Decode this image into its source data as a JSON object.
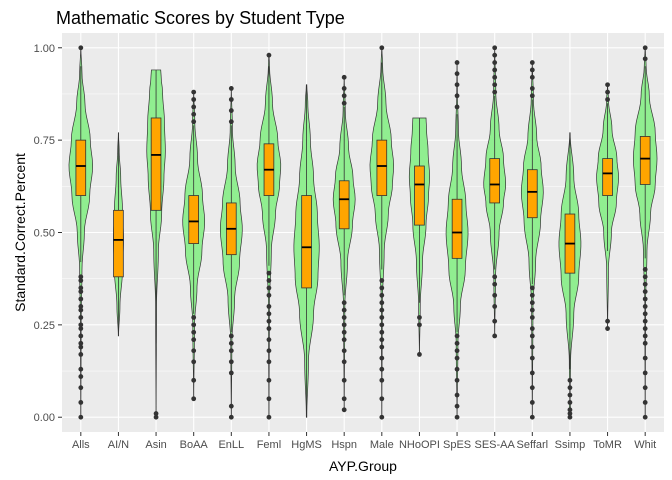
{
  "colors": {
    "panel": "#ebebeb",
    "grid_major": "#ffffff",
    "violin_fill": "#90ee90",
    "box_fill": "#ffa500",
    "outline": "#333333",
    "outlier": "#333333"
  },
  "chart_data": {
    "type": "violin",
    "title": "Mathematic Scores by Student Type",
    "xlabel": "AYP.Group",
    "ylabel": "Standard.Correct.Percent",
    "ylim": [
      -0.04,
      1.04
    ],
    "yticks": [
      0.0,
      0.25,
      0.5,
      0.75,
      1.0
    ],
    "ytick_labels": [
      "0.00",
      "0.25",
      "0.50",
      "0.75",
      "1.00"
    ],
    "grid": true,
    "categories": [
      "Alls",
      "AI/N",
      "Asin",
      "BoAA",
      "EnLL",
      "Feml",
      "HgMS",
      "Hspn",
      "Male",
      "NHoOPI",
      "SpES",
      "SES-AA",
      "Seffarl",
      "Ssimp",
      "ToMR",
      "Whit"
    ],
    "groups": [
      {
        "label": "Alls",
        "min": 0.0,
        "max": 1.0,
        "q1": 0.6,
        "median": 0.68,
        "q3": 0.75,
        "whisker_low": 0.42,
        "whisker_high": 0.95,
        "width": 0.7,
        "profile": [
          [
            0.0,
            0.01
          ],
          [
            0.25,
            0.03
          ],
          [
            0.4,
            0.1
          ],
          [
            0.5,
            0.3
          ],
          [
            0.6,
            0.75
          ],
          [
            0.68,
            1.0
          ],
          [
            0.75,
            0.8
          ],
          [
            0.85,
            0.35
          ],
          [
            0.93,
            0.1
          ],
          [
            1.0,
            0.01
          ]
        ],
        "outliers": [
          0.0,
          0.04,
          0.08,
          0.11,
          0.13,
          0.17,
          0.19,
          0.2,
          0.22,
          0.24,
          0.25,
          0.27,
          0.29,
          0.3,
          0.32,
          0.34,
          0.35,
          0.37,
          0.38,
          1.0
        ]
      },
      {
        "label": "AI/N",
        "min": 0.22,
        "max": 0.77,
        "q1": 0.38,
        "median": 0.48,
        "q3": 0.56,
        "whisker_low": 0.22,
        "whisker_high": 0.77,
        "width": 0.3,
        "profile": [
          [
            0.22,
            0.03
          ],
          [
            0.3,
            0.3
          ],
          [
            0.4,
            0.8
          ],
          [
            0.48,
            1.0
          ],
          [
            0.56,
            0.8
          ],
          [
            0.65,
            0.45
          ],
          [
            0.72,
            0.15
          ],
          [
            0.77,
            0.02
          ]
        ],
        "outliers": []
      },
      {
        "label": "Asin",
        "min": 0.0,
        "max": 0.94,
        "q1": 0.56,
        "median": 0.71,
        "q3": 0.81,
        "whisker_low": 0.2,
        "whisker_high": 0.94,
        "width": 0.55,
        "profile": [
          [
            0.0,
            0.01
          ],
          [
            0.3,
            0.05
          ],
          [
            0.45,
            0.25
          ],
          [
            0.55,
            0.6
          ],
          [
            0.65,
            0.85
          ],
          [
            0.72,
            1.0
          ],
          [
            0.8,
            0.9
          ],
          [
            0.88,
            0.7
          ],
          [
            0.92,
            0.55
          ],
          [
            0.94,
            0.5
          ]
        ],
        "outliers": [
          0.0,
          0.01
        ]
      },
      {
        "label": "BoAA",
        "min": 0.05,
        "max": 0.88,
        "q1": 0.47,
        "median": 0.53,
        "q3": 0.6,
        "whisker_low": 0.28,
        "whisker_high": 0.79,
        "width": 0.65,
        "profile": [
          [
            0.05,
            0.01
          ],
          [
            0.25,
            0.08
          ],
          [
            0.35,
            0.3
          ],
          [
            0.45,
            0.75
          ],
          [
            0.53,
            1.0
          ],
          [
            0.6,
            0.8
          ],
          [
            0.7,
            0.35
          ],
          [
            0.8,
            0.1
          ],
          [
            0.88,
            0.01
          ]
        ],
        "outliers": [
          0.05,
          0.1,
          0.15,
          0.18,
          0.21,
          0.23,
          0.25,
          0.27,
          0.8,
          0.82,
          0.84,
          0.86,
          0.88
        ]
      },
      {
        "label": "EnLL",
        "min": 0.0,
        "max": 0.89,
        "q1": 0.44,
        "median": 0.51,
        "q3": 0.58,
        "whisker_low": 0.23,
        "whisker_high": 0.79,
        "width": 0.65,
        "profile": [
          [
            0.0,
            0.01
          ],
          [
            0.2,
            0.05
          ],
          [
            0.32,
            0.3
          ],
          [
            0.42,
            0.75
          ],
          [
            0.51,
            1.0
          ],
          [
            0.58,
            0.8
          ],
          [
            0.68,
            0.35
          ],
          [
            0.78,
            0.1
          ],
          [
            0.89,
            0.01
          ]
        ],
        "outliers": [
          0.0,
          0.03,
          0.12,
          0.15,
          0.18,
          0.2,
          0.22,
          0.8,
          0.83,
          0.86,
          0.89
        ]
      },
      {
        "label": "Feml",
        "min": 0.0,
        "max": 0.98,
        "q1": 0.6,
        "median": 0.67,
        "q3": 0.74,
        "whisker_low": 0.41,
        "whisker_high": 0.95,
        "width": 0.7,
        "profile": [
          [
            0.0,
            0.01
          ],
          [
            0.3,
            0.04
          ],
          [
            0.45,
            0.2
          ],
          [
            0.55,
            0.55
          ],
          [
            0.63,
            0.9
          ],
          [
            0.68,
            1.0
          ],
          [
            0.75,
            0.75
          ],
          [
            0.85,
            0.3
          ],
          [
            0.95,
            0.05
          ],
          [
            0.98,
            0.01
          ]
        ],
        "outliers": [
          0.0,
          0.05,
          0.1,
          0.15,
          0.18,
          0.21,
          0.24,
          0.26,
          0.28,
          0.3,
          0.33,
          0.35,
          0.37,
          0.39,
          0.98
        ]
      },
      {
        "label": "HgMS",
        "min": 0.0,
        "max": 0.9,
        "q1": 0.35,
        "median": 0.46,
        "q3": 0.6,
        "whisker_low": 0.0,
        "whisker_high": 0.9,
        "width": 0.75,
        "profile": [
          [
            0.0,
            0.02
          ],
          [
            0.15,
            0.15
          ],
          [
            0.28,
            0.55
          ],
          [
            0.38,
            0.9
          ],
          [
            0.46,
            1.0
          ],
          [
            0.55,
            0.85
          ],
          [
            0.65,
            0.55
          ],
          [
            0.75,
            0.3
          ],
          [
            0.85,
            0.1
          ],
          [
            0.9,
            0.02
          ]
        ],
        "outliers": []
      },
      {
        "label": "Hspn",
        "min": 0.02,
        "max": 0.92,
        "q1": 0.51,
        "median": 0.59,
        "q3": 0.64,
        "whisker_low": 0.33,
        "whisker_high": 0.84,
        "width": 0.65,
        "profile": [
          [
            0.02,
            0.01
          ],
          [
            0.3,
            0.06
          ],
          [
            0.42,
            0.3
          ],
          [
            0.52,
            0.75
          ],
          [
            0.59,
            1.0
          ],
          [
            0.65,
            0.8
          ],
          [
            0.73,
            0.4
          ],
          [
            0.83,
            0.1
          ],
          [
            0.92,
            0.01
          ]
        ],
        "outliers": [
          0.02,
          0.05,
          0.1,
          0.15,
          0.18,
          0.21,
          0.23,
          0.25,
          0.27,
          0.29,
          0.31,
          0.85,
          0.87,
          0.89,
          0.92
        ]
      },
      {
        "label": "Male",
        "min": 0.0,
        "max": 1.0,
        "q1": 0.6,
        "median": 0.68,
        "q3": 0.75,
        "whisker_low": 0.4,
        "whisker_high": 0.96,
        "width": 0.7,
        "profile": [
          [
            0.0,
            0.01
          ],
          [
            0.3,
            0.04
          ],
          [
            0.45,
            0.2
          ],
          [
            0.55,
            0.55
          ],
          [
            0.63,
            0.9
          ],
          [
            0.68,
            1.0
          ],
          [
            0.75,
            0.8
          ],
          [
            0.85,
            0.35
          ],
          [
            0.95,
            0.07
          ],
          [
            1.0,
            0.01
          ]
        ],
        "outliers": [
          0.0,
          0.05,
          0.1,
          0.13,
          0.16,
          0.19,
          0.21,
          0.23,
          0.25,
          0.27,
          0.29,
          0.31,
          0.33,
          0.35,
          0.37,
          1.0
        ]
      },
      {
        "label": "NHoOPI",
        "min": 0.17,
        "max": 0.81,
        "q1": 0.52,
        "median": 0.63,
        "q3": 0.68,
        "whisker_low": 0.31,
        "whisker_high": 0.81,
        "width": 0.6,
        "profile": [
          [
            0.17,
            0.01
          ],
          [
            0.3,
            0.08
          ],
          [
            0.42,
            0.3
          ],
          [
            0.52,
            0.65
          ],
          [
            0.6,
            0.9
          ],
          [
            0.65,
            1.0
          ],
          [
            0.72,
            0.85
          ],
          [
            0.78,
            0.7
          ],
          [
            0.81,
            0.65
          ]
        ],
        "outliers": [
          0.17,
          0.25,
          0.27
        ]
      },
      {
        "label": "SpES",
        "min": 0.0,
        "max": 0.96,
        "q1": 0.43,
        "median": 0.5,
        "q3": 0.59,
        "whisker_low": 0.23,
        "whisker_high": 0.82,
        "width": 0.65,
        "profile": [
          [
            0.0,
            0.01
          ],
          [
            0.2,
            0.08
          ],
          [
            0.3,
            0.3
          ],
          [
            0.4,
            0.75
          ],
          [
            0.5,
            1.0
          ],
          [
            0.58,
            0.8
          ],
          [
            0.68,
            0.4
          ],
          [
            0.78,
            0.12
          ],
          [
            0.88,
            0.03
          ],
          [
            0.96,
            0.01
          ]
        ],
        "outliers": [
          0.0,
          0.03,
          0.06,
          0.1,
          0.13,
          0.16,
          0.18,
          0.2,
          0.22,
          0.84,
          0.87,
          0.9,
          0.93,
          0.96
        ]
      },
      {
        "label": "SES-AA",
        "min": 0.22,
        "max": 1.0,
        "q1": 0.58,
        "median": 0.63,
        "q3": 0.7,
        "whisker_low": 0.4,
        "whisker_high": 0.87,
        "width": 0.65,
        "profile": [
          [
            0.22,
            0.01
          ],
          [
            0.38,
            0.08
          ],
          [
            0.5,
            0.4
          ],
          [
            0.58,
            0.8
          ],
          [
            0.63,
            1.0
          ],
          [
            0.7,
            0.8
          ],
          [
            0.78,
            0.4
          ],
          [
            0.88,
            0.1
          ],
          [
            1.0,
            0.01
          ]
        ],
        "outliers": [
          0.22,
          0.26,
          0.3,
          0.33,
          0.36,
          0.38,
          0.88,
          0.9,
          0.92,
          0.94,
          0.96,
          0.98,
          1.0
        ]
      },
      {
        "label": "Seffarl",
        "min": 0.0,
        "max": 0.96,
        "q1": 0.54,
        "median": 0.61,
        "q3": 0.67,
        "whisker_low": 0.36,
        "whisker_high": 0.86,
        "width": 0.65,
        "profile": [
          [
            0.0,
            0.01
          ],
          [
            0.3,
            0.06
          ],
          [
            0.42,
            0.3
          ],
          [
            0.53,
            0.75
          ],
          [
            0.61,
            1.0
          ],
          [
            0.68,
            0.8
          ],
          [
            0.76,
            0.4
          ],
          [
            0.86,
            0.1
          ],
          [
            0.96,
            0.01
          ]
        ],
        "outliers": [
          0.0,
          0.04,
          0.08,
          0.12,
          0.16,
          0.19,
          0.22,
          0.24,
          0.27,
          0.29,
          0.31,
          0.33,
          0.35,
          0.87,
          0.89,
          0.92,
          0.94,
          0.96
        ]
      },
      {
        "label": "Ssimp",
        "min": 0.0,
        "max": 0.77,
        "q1": 0.39,
        "median": 0.47,
        "q3": 0.55,
        "whisker_low": 0.13,
        "whisker_high": 0.77,
        "width": 0.65,
        "profile": [
          [
            0.0,
            0.08
          ],
          [
            0.02,
            0.06
          ],
          [
            0.05,
            0.02
          ],
          [
            0.15,
            0.06
          ],
          [
            0.28,
            0.35
          ],
          [
            0.38,
            0.8
          ],
          [
            0.47,
            1.0
          ],
          [
            0.55,
            0.8
          ],
          [
            0.65,
            0.35
          ],
          [
            0.77,
            0.02
          ]
        ],
        "outliers": [
          0.0,
          0.01,
          0.02,
          0.04,
          0.06,
          0.08,
          0.1
        ]
      },
      {
        "label": "ToMR",
        "min": 0.24,
        "max": 0.9,
        "q1": 0.6,
        "median": 0.66,
        "q3": 0.7,
        "whisker_low": 0.45,
        "whisker_high": 0.85,
        "width": 0.65,
        "profile": [
          [
            0.24,
            0.01
          ],
          [
            0.4,
            0.08
          ],
          [
            0.5,
            0.35
          ],
          [
            0.58,
            0.8
          ],
          [
            0.65,
            1.0
          ],
          [
            0.7,
            0.85
          ],
          [
            0.78,
            0.4
          ],
          [
            0.86,
            0.08
          ],
          [
            0.9,
            0.01
          ]
        ],
        "outliers": [
          0.24,
          0.26,
          0.86,
          0.88,
          0.9
        ]
      },
      {
        "label": "Whit",
        "min": 0.0,
        "max": 1.0,
        "q1": 0.63,
        "median": 0.7,
        "q3": 0.76,
        "whisker_low": 0.43,
        "whisker_high": 0.95,
        "width": 0.7,
        "profile": [
          [
            0.0,
            0.01
          ],
          [
            0.3,
            0.03
          ],
          [
            0.45,
            0.15
          ],
          [
            0.55,
            0.45
          ],
          [
            0.63,
            0.85
          ],
          [
            0.7,
            1.0
          ],
          [
            0.77,
            0.85
          ],
          [
            0.87,
            0.35
          ],
          [
            0.95,
            0.08
          ],
          [
            1.0,
            0.01
          ]
        ],
        "outliers": [
          0.0,
          0.04,
          0.08,
          0.12,
          0.16,
          0.2,
          0.22,
          0.24,
          0.26,
          0.28,
          0.3,
          0.32,
          0.34,
          0.36,
          0.38,
          0.4,
          0.97,
          1.0
        ]
      }
    ]
  }
}
